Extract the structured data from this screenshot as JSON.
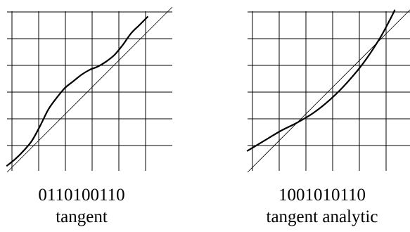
{
  "panels": [
    {
      "code": "0110100110",
      "name": "tangent",
      "curve_points": [
        [
          0.0,
          0.04
        ],
        [
          0.05,
          0.08
        ],
        [
          0.1,
          0.13
        ],
        [
          0.15,
          0.19
        ],
        [
          0.2,
          0.28
        ],
        [
          0.25,
          0.38
        ],
        [
          0.3,
          0.45
        ],
        [
          0.35,
          0.51
        ],
        [
          0.4,
          0.55
        ],
        [
          0.45,
          0.59
        ],
        [
          0.5,
          0.62
        ],
        [
          0.55,
          0.64
        ],
        [
          0.6,
          0.67
        ],
        [
          0.65,
          0.71
        ],
        [
          0.7,
          0.77
        ],
        [
          0.75,
          0.84
        ],
        [
          0.8,
          0.89
        ],
        [
          0.85,
          0.94
        ]
      ]
    },
    {
      "code": "1001010110",
      "name": "tangent analytic",
      "curve_points": [
        [
          0.0,
          0.13
        ],
        [
          0.1,
          0.19
        ],
        [
          0.2,
          0.25
        ],
        [
          0.3,
          0.3
        ],
        [
          0.4,
          0.36
        ],
        [
          0.5,
          0.44
        ],
        [
          0.6,
          0.54
        ],
        [
          0.7,
          0.66
        ],
        [
          0.8,
          0.81
        ],
        [
          0.86,
          0.92
        ],
        [
          0.89,
          0.98
        ]
      ]
    }
  ],
  "grid": {
    "divisions": 6
  },
  "colors": {
    "line": "#000000",
    "background": "#ffffff"
  }
}
